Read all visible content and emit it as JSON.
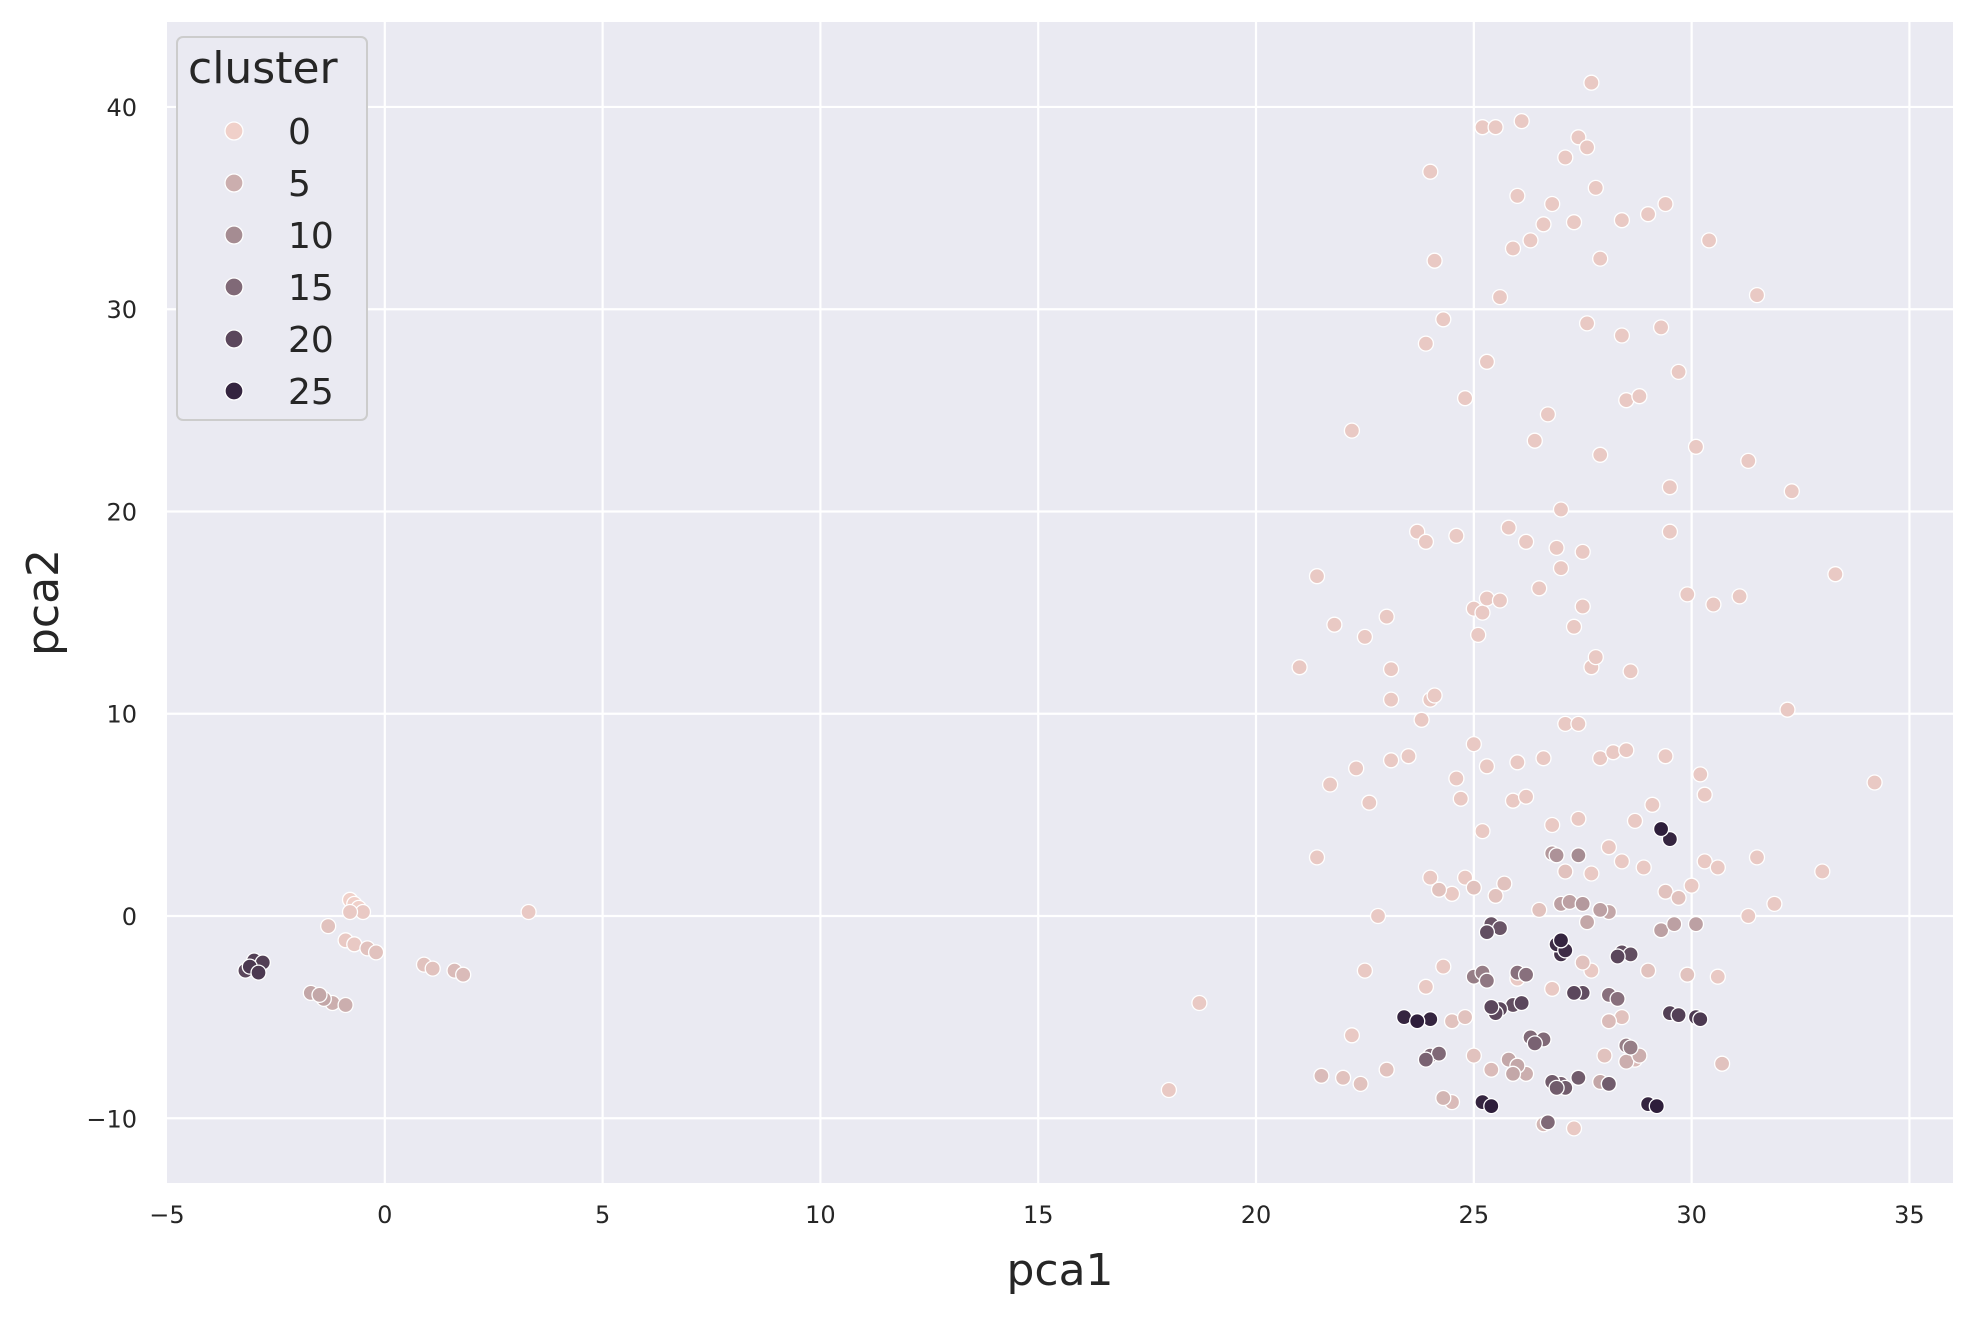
{
  "chart_data": {
    "type": "scatter",
    "xlabel": "pca1",
    "ylabel": "pca2",
    "xlim": [
      -5,
      36
    ],
    "ylim": [
      -13.2,
      44.2
    ],
    "xticks": [
      -5,
      0,
      5,
      10,
      15,
      20,
      25,
      30,
      35
    ],
    "yticks": [
      -10,
      0,
      10,
      20,
      30,
      40
    ],
    "xtick_labels": [
      "−5",
      "0",
      "5",
      "10",
      "15",
      "20",
      "25",
      "30",
      "35"
    ],
    "ytick_labels": [
      "−10",
      "0",
      "10",
      "20",
      "30",
      "40"
    ],
    "grid": true,
    "legend": {
      "title": "cluster",
      "position": "top-left",
      "entries": [
        {
          "label": "0",
          "value": 0
        },
        {
          "label": "5",
          "value": 5
        },
        {
          "label": "10",
          "value": 10
        },
        {
          "label": "15",
          "value": 15
        },
        {
          "label": "20",
          "value": 20
        },
        {
          "label": "25",
          "value": 25
        }
      ]
    },
    "colors": {
      "background": "#eaeaf2",
      "grid": "#ffffff",
      "marker_edge": "#ffffff",
      "palette_light": "#f0d0c9",
      "palette_dark": "#2e1e3b"
    },
    "points": [
      [
        -3.1,
        -2.5,
        22
      ],
      [
        -2.9,
        -2.8,
        22
      ],
      [
        -3.0,
        -2.2,
        21
      ],
      [
        -2.8,
        -2.3,
        21
      ],
      [
        -3.2,
        -2.7,
        20
      ],
      [
        -0.8,
        0.8,
        0
      ],
      [
        -0.7,
        0.6,
        0
      ],
      [
        -0.6,
        0.4,
        0
      ],
      [
        -0.5,
        0.2,
        1
      ],
      [
        -0.8,
        0.2,
        1
      ],
      [
        -1.3,
        -0.5,
        2
      ],
      [
        -0.9,
        -1.2,
        1
      ],
      [
        -0.7,
        -1.4,
        1
      ],
      [
        -0.4,
        -1.6,
        2
      ],
      [
        -0.2,
        -1.8,
        2
      ],
      [
        -1.7,
        -3.8,
        6
      ],
      [
        -1.4,
        -4.1,
        6
      ],
      [
        -1.2,
        -4.3,
        5
      ],
      [
        -0.9,
        -4.4,
        5
      ],
      [
        -1.5,
        -3.9,
        6
      ],
      [
        0.9,
        -2.4,
        2
      ],
      [
        1.1,
        -2.6,
        2
      ],
      [
        1.6,
        -2.7,
        3
      ],
      [
        1.8,
        -2.9,
        3
      ],
      [
        3.3,
        0.2,
        1
      ],
      [
        18.0,
        -8.6,
        1
      ],
      [
        18.7,
        -4.3,
        1
      ],
      [
        21.0,
        12.3,
        1
      ],
      [
        21.4,
        16.8,
        1
      ],
      [
        21.4,
        2.9,
        1
      ],
      [
        21.7,
        6.5,
        1
      ],
      [
        21.8,
        14.4,
        1
      ],
      [
        22.2,
        24.0,
        1
      ],
      [
        22.3,
        7.3,
        1
      ],
      [
        22.5,
        13.8,
        1
      ],
      [
        22.6,
        5.6,
        1
      ],
      [
        22.8,
        0.0,
        1
      ],
      [
        23.0,
        14.8,
        1
      ],
      [
        23.1,
        10.7,
        1
      ],
      [
        23.1,
        12.2,
        1
      ],
      [
        23.1,
        7.7,
        1
      ],
      [
        23.5,
        7.9,
        1
      ],
      [
        23.7,
        19.0,
        1
      ],
      [
        23.8,
        9.7,
        1
      ],
      [
        23.9,
        18.5,
        1
      ],
      [
        23.9,
        28.3,
        1
      ],
      [
        24.0,
        10.7,
        1
      ],
      [
        24.0,
        36.8,
        1
      ],
      [
        24.1,
        32.4,
        1
      ],
      [
        24.1,
        10.9,
        1
      ],
      [
        24.3,
        29.5,
        1
      ],
      [
        24.6,
        18.8,
        1
      ],
      [
        24.6,
        6.8,
        1
      ],
      [
        24.7,
        5.8,
        1
      ],
      [
        24.8,
        25.6,
        1
      ],
      [
        25.0,
        15.2,
        1
      ],
      [
        25.0,
        8.5,
        1
      ],
      [
        25.1,
        13.9,
        1
      ],
      [
        25.2,
        15.0,
        1
      ],
      [
        25.2,
        39.0,
        1
      ],
      [
        25.3,
        15.7,
        1
      ],
      [
        25.3,
        7.4,
        1
      ],
      [
        25.3,
        27.4,
        1
      ],
      [
        25.5,
        39.0,
        1
      ],
      [
        25.6,
        15.6,
        1
      ],
      [
        25.6,
        30.6,
        1
      ],
      [
        25.8,
        19.2,
        1
      ],
      [
        25.9,
        33.0,
        1
      ],
      [
        26.0,
        7.6,
        1
      ],
      [
        26.0,
        35.6,
        1
      ],
      [
        26.1,
        39.3,
        1
      ],
      [
        26.2,
        18.5,
        1
      ],
      [
        26.3,
        33.4,
        1
      ],
      [
        26.4,
        23.5,
        1
      ],
      [
        26.5,
        16.2,
        1
      ],
      [
        26.6,
        34.2,
        1
      ],
      [
        26.6,
        7.8,
        1
      ],
      [
        26.7,
        24.8,
        1
      ],
      [
        26.8,
        35.2,
        1
      ],
      [
        26.9,
        18.2,
        1
      ],
      [
        27.0,
        17.2,
        1
      ],
      [
        27.0,
        20.1,
        1
      ],
      [
        27.1,
        37.5,
        1
      ],
      [
        27.1,
        9.5,
        1
      ],
      [
        27.3,
        34.3,
        1
      ],
      [
        27.3,
        14.3,
        1
      ],
      [
        27.4,
        38.5,
        1
      ],
      [
        27.4,
        9.5,
        1
      ],
      [
        27.5,
        18.0,
        1
      ],
      [
        27.5,
        15.3,
        1
      ],
      [
        27.6,
        29.3,
        1
      ],
      [
        27.6,
        38.0,
        1
      ],
      [
        27.7,
        12.3,
        1
      ],
      [
        27.7,
        41.2,
        1
      ],
      [
        27.8,
        36.0,
        1
      ],
      [
        27.8,
        12.8,
        1
      ],
      [
        27.9,
        22.8,
        1
      ],
      [
        27.9,
        32.5,
        1
      ],
      [
        27.9,
        7.8,
        1
      ],
      [
        28.2,
        8.1,
        1
      ],
      [
        28.4,
        28.7,
        1
      ],
      [
        28.4,
        34.4,
        1
      ],
      [
        28.5,
        25.5,
        1
      ],
      [
        28.5,
        8.2,
        1
      ],
      [
        28.6,
        12.1,
        1
      ],
      [
        28.8,
        25.7,
        1
      ],
      [
        29.0,
        34.7,
        1
      ],
      [
        29.3,
        29.1,
        1
      ],
      [
        29.4,
        35.2,
        1
      ],
      [
        29.4,
        7.9,
        1
      ],
      [
        29.5,
        21.2,
        1
      ],
      [
        29.5,
        19.0,
        1
      ],
      [
        29.7,
        26.9,
        1
      ],
      [
        29.9,
        15.9,
        1
      ],
      [
        30.1,
        23.2,
        1
      ],
      [
        30.2,
        7.0,
        1
      ],
      [
        30.3,
        6.0,
        1
      ],
      [
        30.4,
        33.4,
        1
      ],
      [
        30.5,
        15.4,
        1
      ],
      [
        31.1,
        15.8,
        1
      ],
      [
        31.3,
        22.5,
        1
      ],
      [
        31.5,
        30.7,
        1
      ],
      [
        32.2,
        10.2,
        1
      ],
      [
        32.3,
        21.0,
        1
      ],
      [
        33.0,
        2.2,
        1
      ],
      [
        33.3,
        16.9,
        1
      ],
      [
        34.2,
        6.6,
        1
      ],
      [
        31.5,
        2.9,
        1
      ],
      [
        31.3,
        0.0,
        1
      ],
      [
        31.9,
        0.6,
        1
      ],
      [
        24.0,
        1.9,
        1
      ],
      [
        24.2,
        1.3,
        2
      ],
      [
        24.5,
        1.1,
        1
      ],
      [
        24.8,
        1.9,
        1
      ],
      [
        25.0,
        1.4,
        2
      ],
      [
        25.2,
        4.2,
        1
      ],
      [
        25.5,
        1.0,
        2
      ],
      [
        25.7,
        1.6,
        2
      ],
      [
        25.9,
        5.7,
        1
      ],
      [
        26.2,
        5.9,
        1
      ],
      [
        26.5,
        0.3,
        2
      ],
      [
        26.8,
        4.5,
        1
      ],
      [
        27.1,
        2.2,
        2
      ],
      [
        27.4,
        4.8,
        1
      ],
      [
        27.7,
        2.1,
        1
      ],
      [
        28.1,
        3.4,
        1
      ],
      [
        28.4,
        2.7,
        1
      ],
      [
        28.7,
        4.7,
        1
      ],
      [
        28.9,
        2.4,
        1
      ],
      [
        29.1,
        5.5,
        1
      ],
      [
        29.4,
        1.2,
        2
      ],
      [
        29.7,
        0.9,
        2
      ],
      [
        30.0,
        1.5,
        1
      ],
      [
        30.3,
        2.7,
        1
      ],
      [
        30.6,
        2.4,
        1
      ],
      [
        23.0,
        -7.6,
        2
      ],
      [
        22.4,
        -8.3,
        2
      ],
      [
        22.0,
        -8.0,
        2
      ],
      [
        21.5,
        -7.9,
        3
      ],
      [
        22.2,
        -5.9,
        1
      ],
      [
        22.5,
        -2.7,
        1
      ],
      [
        23.9,
        -3.5,
        1
      ],
      [
        24.3,
        -2.5,
        1
      ],
      [
        24.5,
        -5.2,
        2
      ],
      [
        24.8,
        -5.0,
        2
      ],
      [
        25.0,
        -6.9,
        2
      ],
      [
        25.4,
        -7.6,
        3
      ],
      [
        26.0,
        -3.1,
        1
      ],
      [
        26.8,
        -3.6,
        1
      ],
      [
        27.5,
        -2.3,
        2
      ],
      [
        28.1,
        -5.2,
        3
      ],
      [
        28.4,
        -5.0,
        2
      ],
      [
        28.7,
        -7.1,
        3
      ],
      [
        29.0,
        -2.7,
        2
      ],
      [
        29.9,
        -2.9,
        2
      ],
      [
        30.6,
        -3.0,
        1
      ],
      [
        30.7,
        -7.3,
        2
      ],
      [
        27.3,
        -10.5,
        1
      ],
      [
        26.6,
        -10.3,
        4
      ],
      [
        24.3,
        -9.0,
        4
      ],
      [
        24.5,
        -9.2,
        3
      ],
      [
        28.0,
        -6.9,
        2
      ],
      [
        27.7,
        -2.7,
        1
      ],
      [
        25.8,
        -7.1,
        6
      ],
      [
        26.0,
        -7.4,
        6
      ],
      [
        25.9,
        -7.8,
        6
      ],
      [
        26.2,
        -7.8,
        5
      ],
      [
        27.9,
        -8.2,
        6
      ],
      [
        28.1,
        -8.3,
        6
      ],
      [
        28.5,
        -7.2,
        5
      ],
      [
        28.8,
        -6.9,
        5
      ],
      [
        29.3,
        -0.7,
        7
      ],
      [
        29.6,
        -0.4,
        7
      ],
      [
        30.1,
        -0.4,
        7
      ],
      [
        27.6,
        -0.3,
        6
      ],
      [
        27.9,
        0.3,
        7
      ],
      [
        28.1,
        0.2,
        6
      ],
      [
        27.0,
        0.6,
        7
      ],
      [
        27.2,
        0.7,
        7
      ],
      [
        27.5,
        0.6,
        8
      ],
      [
        26.8,
        3.1,
        8
      ],
      [
        26.9,
        3.0,
        9
      ],
      [
        27.4,
        3.0,
        10
      ],
      [
        28.5,
        -6.4,
        12
      ],
      [
        28.6,
        -6.5,
        12
      ],
      [
        25.0,
        -3.0,
        12
      ],
      [
        25.3,
        -3.2,
        13
      ],
      [
        25.2,
        -2.8,
        12
      ],
      [
        26.0,
        -2.8,
        14
      ],
      [
        26.2,
        -2.9,
        14
      ],
      [
        28.1,
        -3.9,
        14
      ],
      [
        28.3,
        -4.1,
        14
      ],
      [
        26.3,
        -6.0,
        15
      ],
      [
        26.6,
        -6.1,
        15
      ],
      [
        26.4,
        -6.3,
        16
      ],
      [
        24.0,
        -6.9,
        15
      ],
      [
        24.2,
        -6.8,
        15
      ],
      [
        23.9,
        -7.1,
        16
      ],
      [
        27.0,
        -8.3,
        16
      ],
      [
        26.8,
        -8.2,
        17
      ],
      [
        27.1,
        -8.5,
        17
      ],
      [
        26.9,
        -8.5,
        17
      ],
      [
        27.4,
        -8.0,
        17
      ],
      [
        28.1,
        -8.3,
        17
      ],
      [
        26.7,
        -10.2,
        15
      ],
      [
        25.4,
        -0.4,
        18
      ],
      [
        25.6,
        -0.6,
        18
      ],
      [
        25.3,
        -0.8,
        19
      ],
      [
        25.9,
        -4.4,
        19
      ],
      [
        26.1,
        -4.3,
        20
      ],
      [
        25.6,
        -4.6,
        20
      ],
      [
        25.5,
        -4.8,
        20
      ],
      [
        25.4,
        -4.5,
        20
      ],
      [
        27.3,
        -3.8,
        20
      ],
      [
        27.5,
        -3.8,
        19
      ],
      [
        28.4,
        -1.8,
        19
      ],
      [
        28.6,
        -1.9,
        19
      ],
      [
        28.3,
        -2.0,
        20
      ],
      [
        29.5,
        -4.8,
        21
      ],
      [
        29.7,
        -4.9,
        21
      ],
      [
        30.1,
        -5.0,
        22
      ],
      [
        30.2,
        -5.1,
        22
      ],
      [
        26.9,
        -1.4,
        24
      ],
      [
        27.0,
        -1.2,
        25
      ],
      [
        27.1,
        -1.7,
        24
      ],
      [
        27.0,
        -1.9,
        23
      ],
      [
        23.4,
        -5.0,
        25
      ],
      [
        23.7,
        -5.2,
        26
      ],
      [
        24.0,
        -5.1,
        25
      ],
      [
        25.2,
        -9.2,
        25
      ],
      [
        25.4,
        -9.4,
        26
      ],
      [
        29.0,
        -9.3,
        25
      ],
      [
        29.2,
        -9.4,
        26
      ],
      [
        29.3,
        4.3,
        26
      ],
      [
        29.5,
        3.8,
        25
      ]
    ]
  }
}
